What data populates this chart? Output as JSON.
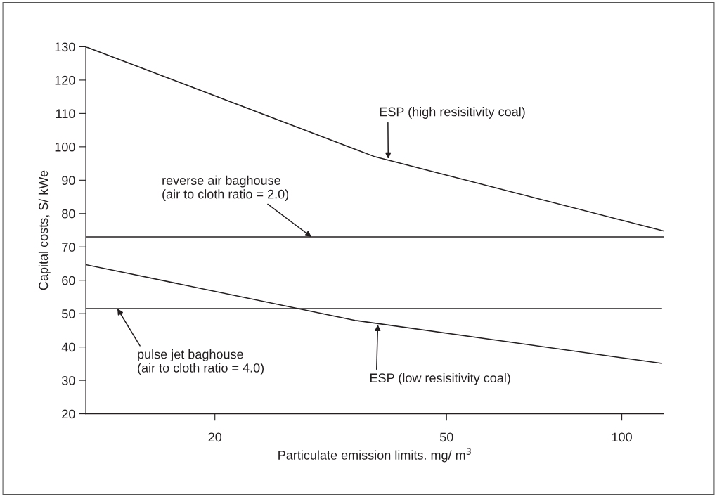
{
  "chart_data": {
    "type": "line",
    "xlabel": "Particulate emission limits. mg/ m$^{3}$",
    "ylabel": "Capital costs, S/ kWe",
    "log": "x",
    "xlim": [
      12,
      118
    ],
    "xticks": [
      20,
      50,
      100
    ],
    "ylim": [
      20,
      130
    ],
    "yticks": [
      20,
      30,
      40,
      50,
      60,
      70,
      80,
      90,
      100,
      110,
      120,
      130
    ],
    "grid": false,
    "legend": false,
    "marker": "none",
    "line_style": "solid",
    "series": [
      {
        "color": "#231f20",
        "x": [
          12,
          37.7,
          118
        ],
        "values": [
          130,
          97,
          74.8
        ]
      },
      {
        "color": "#231f20",
        "x": [
          12,
          118
        ],
        "values": [
          73,
          73
        ]
      },
      {
        "color": "#231f20",
        "x": [
          12,
          34.8,
          117
        ],
        "values": [
          64.7,
          48,
          35.1
        ]
      },
      {
        "color": "#231f20",
        "x": [
          12,
          117
        ],
        "values": [
          51.5,
          51.5
        ]
      }
    ],
    "annotations": [
      {
        "text": "ESP (high resisitivity coal)",
        "x": 39.7,
        "y": 96.4
      },
      {
        "text": "reverse air baghouse\n(air to cloth ratio = 2.0)",
        "x": 29.3,
        "y": 73
      },
      {
        "text": "pulse jet baghouse\n(air to cloth ratio = 4.0)",
        "x": 13.6,
        "y": 51.5
      },
      {
        "text": "ESP (low resisitivity coal)",
        "x": 38.1,
        "y": 46.7
      }
    ]
  }
}
